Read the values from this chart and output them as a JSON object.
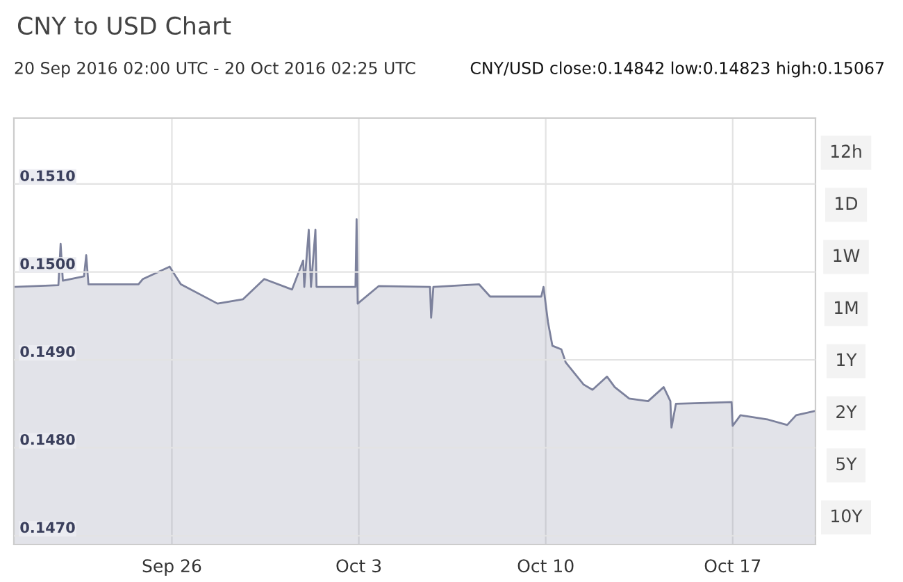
{
  "chart_data": {
    "type": "area",
    "title": "CNY to USD Chart",
    "subtitle": "20 Sep 2016 02:00 UTC - 20 Oct 2016 02:25 UTC",
    "annotations": [
      "CNY/USD close:0.14842 low:0.14823 high:0.15067",
      "12h",
      "1D",
      "1W",
      "1M",
      "1Y",
      "2Y",
      "5Y",
      "10Y"
    ],
    "x": [
      "2016-09-20T02:00",
      "2016-09-21T18:00",
      "2016-09-21T20:00",
      "2016-09-21T22:00",
      "2016-09-22T17:00",
      "2016-09-22T19:00",
      "2016-09-22T21:00",
      "2016-09-23T05:00",
      "2016-09-24T18:00",
      "2016-09-24T22:00",
      "2016-09-25T22:00",
      "2016-09-26T08:00",
      "2016-09-27T17:00",
      "2016-09-28T16:00",
      "2016-09-29T11:00",
      "2016-09-30T12:00",
      "2016-09-30T22:00",
      "2016-09-30T23:00",
      "2016-10-01T03:00",
      "2016-10-01T05:00",
      "2016-10-01T09:00",
      "2016-10-01T10:00",
      "2016-10-02T21:00",
      "2016-10-02T22:00",
      "2016-10-02T23:00",
      "2016-10-03T18:00",
      "2016-10-05T16:00",
      "2016-10-05T17:00",
      "2016-10-05T19:00",
      "2016-10-07T12:00",
      "2016-10-07T22:00",
      "2016-10-09T20:00",
      "2016-10-09T22:00",
      "2016-10-10T02:00",
      "2016-10-10T06:00",
      "2016-10-10T14:00",
      "2016-10-10T18:00",
      "2016-10-11T10:00",
      "2016-10-11T18:00",
      "2016-10-12T07:00",
      "2016-10-12T14:00",
      "2016-10-13T03:00",
      "2016-10-13T20:00",
      "2016-10-14T10:00",
      "2016-10-14T16:00",
      "2016-10-14T17:00",
      "2016-10-14T21:00",
      "2016-10-16T23:00",
      "2016-10-17T00:00",
      "2016-10-17T07:00",
      "2016-10-18T08:00",
      "2016-10-19T01:00",
      "2016-10-19T09:00",
      "2016-10-20T02:25"
    ],
    "series": [
      {
        "color": "#7c819c",
        "values": [
          0.14983,
          0.14985,
          0.15032,
          0.1499,
          0.14995,
          0.15019,
          0.14986,
          0.14986,
          0.14986,
          0.14992,
          0.15006,
          0.14986,
          0.14964,
          0.14969,
          0.14992,
          0.1498,
          0.15013,
          0.14983,
          0.15048,
          0.14983,
          0.15048,
          0.14983,
          0.14983,
          0.1506,
          0.14964,
          0.14984,
          0.14983,
          0.14948,
          0.14983,
          0.14986,
          0.14972,
          0.14972,
          0.14983,
          0.14943,
          0.14916,
          0.14912,
          0.14897,
          0.14872,
          0.14866,
          0.14881,
          0.14869,
          0.14856,
          0.14853,
          0.14869,
          0.14853,
          0.14823,
          0.1485,
          0.14852,
          0.14825,
          0.14837,
          0.14832,
          0.14826,
          0.14837,
          0.14842
        ]
      }
    ],
    "xlim": [
      "2016-09-20T02:00",
      "2016-10-20T02:25"
    ],
    "ylim": [
      0.1469,
      0.15175
    ],
    "yticks": [
      {
        "value": 0.147,
        "label": "0.1470"
      },
      {
        "value": 0.148,
        "label": "0.1480"
      },
      {
        "value": 0.149,
        "label": "0.1490"
      },
      {
        "value": 0.15,
        "label": "0.1500"
      },
      {
        "value": 0.151,
        "label": "0.1510"
      }
    ],
    "xticks": [
      {
        "value": "2016-09-26",
        "label": "Sep 26"
      },
      {
        "value": "2016-10-03",
        "label": "Oct 3"
      },
      {
        "value": "2016-10-10",
        "label": "Oct 10"
      },
      {
        "value": "2016-10-17",
        "label": "Oct 17"
      }
    ],
    "grid": true
  }
}
